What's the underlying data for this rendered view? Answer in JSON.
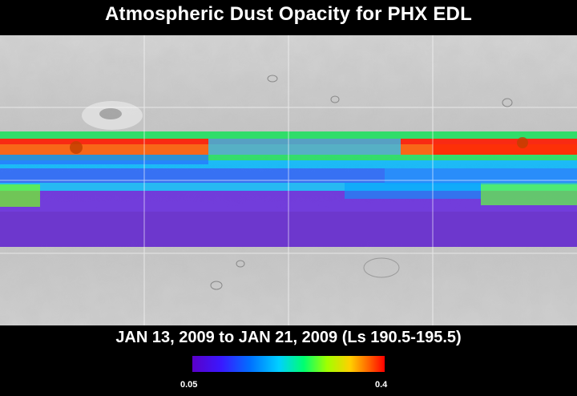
{
  "title": "Atmospheric Dust Opacity for PHX EDL",
  "date_range": "JAN 13, 2009 to JAN 21, 2009 (Ls 190.5-195.5)",
  "colorbar": {
    "min_label": "0.05",
    "max_label": "0.4",
    "colors": [
      "#5a00c8",
      "#3a18ff",
      "#0070ff",
      "#00d0ff",
      "#00ff70",
      "#a0ff00",
      "#ffd000",
      "#ff6000",
      "#ff0000"
    ]
  },
  "map": {
    "base_color": "#c8c8c8",
    "grid_color": "#ffffff",
    "band_colors": {
      "red": "#ff1a00",
      "orange": "#ff5a00",
      "green": "#20e060",
      "lime": "#80ff10",
      "cyan": "#00b8ff",
      "blue": "#1a60ff",
      "violet": "#6020e0",
      "purple": "#5a18d0"
    }
  }
}
